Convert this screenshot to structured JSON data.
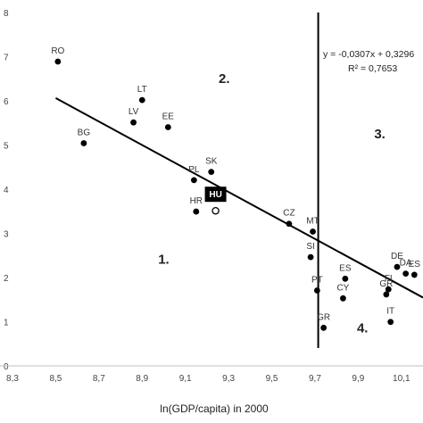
{
  "chart_data": {
    "type": "scatter",
    "xlabel": "ln(GDP/capita) in 2000",
    "ylabel": "",
    "xlim": [
      8.3,
      10.2
    ],
    "ylim": [
      0,
      0.9
    ],
    "x_ticks": [
      "8,3",
      "8,5",
      "8,7",
      "8,9",
      "9,1",
      "9,3",
      "9,5",
      "9,7",
      "9,9",
      "10,1"
    ],
    "y_ticks": [
      "0",
      "1",
      "2",
      "3",
      "4",
      "5",
      "6",
      "7",
      "8"
    ],
    "regression": {
      "equation": "y = -0,0307x + 0,3296",
      "r_squared": "R² = 0,7653",
      "x_start": 8.5,
      "y_start": 0.682,
      "x_end": 10.2,
      "y_end": 0.174
    },
    "vertical_line_x": 9.715,
    "regions": [
      {
        "label": "1.",
        "x": 9.0,
        "y": 0.26
      },
      {
        "label": "2.",
        "x": 9.28,
        "y": 0.72
      },
      {
        "label": "3.",
        "x": 10.0,
        "y": 0.58
      },
      {
        "label": "4.",
        "x": 9.92,
        "y": 0.085
      }
    ],
    "points": [
      {
        "label": "RO",
        "x": 8.51,
        "y": 0.775
      },
      {
        "label": "BG",
        "x": 8.63,
        "y": 0.567
      },
      {
        "label": "LT",
        "x": 8.9,
        "y": 0.677
      },
      {
        "label": "LV",
        "x": 8.86,
        "y": 0.62
      },
      {
        "label": "EE",
        "x": 9.02,
        "y": 0.608
      },
      {
        "label": "SK",
        "x": 9.22,
        "y": 0.494
      },
      {
        "label": "PL",
        "x": 9.14,
        "y": 0.473
      },
      {
        "label": "HR",
        "x": 9.15,
        "y": 0.393
      },
      {
        "label": "CZ",
        "x": 9.58,
        "y": 0.362
      },
      {
        "label": "MT",
        "x": 9.69,
        "y": 0.342
      },
      {
        "label": "SI",
        "x": 9.68,
        "y": 0.277
      },
      {
        "label": "PT",
        "x": 9.71,
        "y": 0.192
      },
      {
        "label": "GR",
        "x": 9.74,
        "y": 0.097
      },
      {
        "label": "ES",
        "x": 9.84,
        "y": 0.222
      },
      {
        "label": "CY",
        "x": 9.83,
        "y": 0.172
      },
      {
        "label": "IT",
        "x": 10.05,
        "y": 0.112
      },
      {
        "label": "DE",
        "x": 10.08,
        "y": 0.252
      },
      {
        "label": "DA",
        "x": 10.12,
        "y": 0.235
      },
      {
        "label": "ES",
        "x": 10.16,
        "y": 0.232
      },
      {
        "label": "FI",
        "x": 10.04,
        "y": 0.195
      },
      {
        "label": "GR",
        "x": 10.03,
        "y": 0.182
      }
    ],
    "highlight": {
      "label": "HU",
      "x": 9.24,
      "y": 0.395
    }
  }
}
